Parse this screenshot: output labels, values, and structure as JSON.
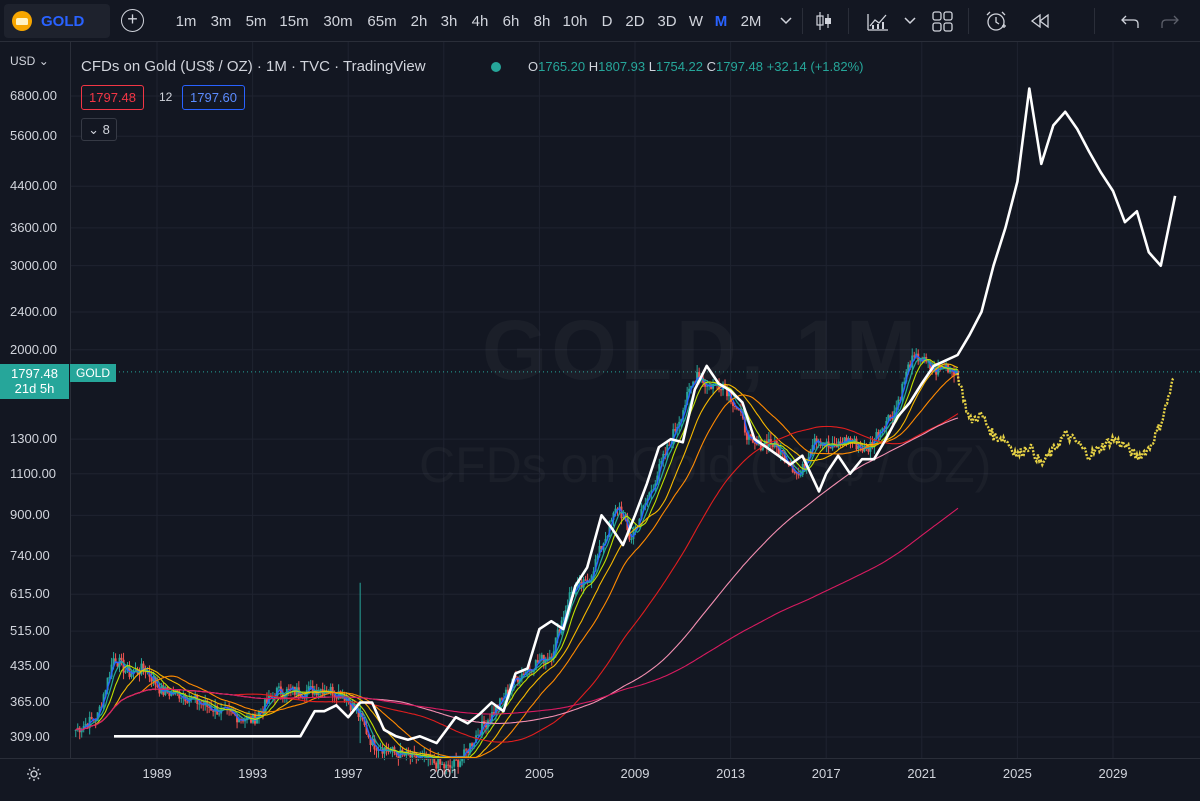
{
  "toolbar": {
    "symbol": "GOLD",
    "timeframes": [
      "1m",
      "3m",
      "5m",
      "15m",
      "30m",
      "65m",
      "2h",
      "3h",
      "4h",
      "6h",
      "8h",
      "10h",
      "D",
      "2D",
      "3D",
      "W",
      "M",
      "2M"
    ],
    "active_timeframe": "M",
    "icons": [
      "plus-icon",
      "chevron-down-icon",
      "candles-icon",
      "indicators-icon",
      "chevron-down-icon",
      "layout-grid-icon",
      "alert-clock-icon",
      "replay-icon",
      "undo-icon",
      "redo-icon"
    ]
  },
  "legend": {
    "title": "CFDs on Gold (US$ / OZ) · 1M · TVC · TradingView",
    "o_label": "O",
    "o": "1765.20",
    "h_label": "H",
    "h": "1807.93",
    "l_label": "L",
    "l": "1754.22",
    "c_label": "C",
    "c": "1797.48",
    "change": "+32.14 (+1.82%)",
    "bid": "1797.48",
    "spread": "12",
    "ask": "1797.60",
    "indicators_toggle": "8"
  },
  "price_axis": {
    "currency": "USD",
    "last_price": "1797.48",
    "countdown": "21d 5h",
    "symbol_tag": "GOLD"
  },
  "watermark": {
    "line1": "GOLD, 1M",
    "line2": "CFDs on Gold (US$ / OZ)"
  },
  "chart_data": {
    "type": "line",
    "title": "CFDs on Gold (US$ / OZ) · 1M · TVC · TradingView",
    "y_scale": "log",
    "ylim": [
      290,
      7300
    ],
    "xlim": [
      1985.6,
      2031.6
    ],
    "y_ticks": [
      6800,
      5600,
      4400,
      3600,
      3000,
      2400,
      2000,
      1300,
      1100,
      900,
      740,
      615,
      515,
      435,
      365,
      309
    ],
    "y_tick_labels": [
      "6800.00",
      "5600.00",
      "4400.00",
      "3600.00",
      "3000.00",
      "2400.00",
      "2000.00",
      "1300.00",
      "1100.00",
      "900.00",
      "740.00",
      "615.00",
      "515.00",
      "435.00",
      "365.00",
      "309.00"
    ],
    "x_ticks": [
      1989,
      1993,
      1997,
      2001,
      2005,
      2009,
      2013,
      2017,
      2021,
      2025,
      2029
    ],
    "grid": true,
    "colors": {
      "background": "#131722",
      "candle_up": "#26a69a",
      "candle_down": "#ef5350",
      "fractal": "#ffffff",
      "projection": "#e7d245",
      "ma_fast": "#2962ff",
      "ma_2": "#22ab94",
      "ma_3": "#c0e000",
      "ma_4": "#f5b800",
      "ma_5": "#ff8a00",
      "ma_6": "#e01e1e",
      "ma_7": "#f48fb1",
      "ma_8": "#d81b60"
    },
    "price": {
      "x": [
        1985.6,
        1986.5,
        1987.2,
        1987.8,
        1988.5,
        1989.2,
        1990.0,
        1991.0,
        1992.0,
        1993.0,
        1994.0,
        1995.0,
        1996.0,
        1996.8,
        1997.5,
        1998.0,
        1999.0,
        1999.7,
        2000.5,
        2001.2,
        2001.8,
        2002.5,
        2003.3,
        2004.0,
        2004.8,
        2005.5,
        2006.3,
        2007.0,
        2007.8,
        2008.3,
        2008.8,
        2009.5,
        2010.3,
        2011.0,
        2011.6,
        2012.0,
        2012.7,
        2013.3,
        2013.9,
        2014.6,
        2015.4,
        2015.9,
        2016.5,
        2017.2,
        2017.9,
        2018.7,
        2019.4,
        2019.9,
        2020.5,
        2020.9,
        2021.5,
        2022.0,
        2022.5
      ],
      "y": [
        320,
        340,
        455,
        420,
        430,
        385,
        380,
        360,
        345,
        335,
        385,
        385,
        390,
        380,
        340,
        300,
        285,
        280,
        275,
        265,
        280,
        320,
        360,
        410,
        440,
        460,
        620,
        650,
        820,
        950,
        800,
        970,
        1220,
        1500,
        1800,
        1680,
        1700,
        1500,
        1250,
        1290,
        1180,
        1080,
        1320,
        1240,
        1300,
        1230,
        1400,
        1500,
        1880,
        1930,
        1800,
        1850,
        1797
      ]
    },
    "fractal": {
      "x": [
        1987.2,
        1995.0,
        1995.6,
        1996.0,
        1996.5,
        1997.0,
        1997.5,
        1998.0,
        1998.5,
        1999.0,
        1999.5,
        2000.0,
        2000.7,
        2001.5,
        2002.0,
        2002.5,
        2003.0,
        2003.5,
        2004.0,
        2004.5,
        2005.0,
        2005.5,
        2006.0,
        2006.5,
        2007.0,
        2007.6,
        2008.0,
        2008.5,
        2009.0,
        2009.5,
        2010.0,
        2010.5,
        2011.0,
        2011.5,
        2012.0,
        2012.5,
        2013.0,
        2013.5,
        2014.0,
        2014.5,
        2015.0,
        2015.5,
        2016.0,
        2016.7,
        2017.0,
        2017.5,
        2018.0,
        2018.5,
        2019.0,
        2019.5,
        2020.0,
        2020.5,
        2021.0,
        2021.5,
        2022.0,
        2022.5,
        2023.0,
        2023.5,
        2024.0,
        2024.5,
        2025.0,
        2025.5,
        2026.0,
        2026.5,
        2027.0,
        2027.5,
        2028.0,
        2028.5,
        2029.0,
        2029.5,
        2030.0,
        2030.5,
        2031.0,
        2031.6
      ],
      "y": [
        310,
        310,
        350,
        350,
        360,
        340,
        365,
        365,
        320,
        310,
        305,
        310,
        300,
        340,
        330,
        345,
        365,
        350,
        420,
        430,
        520,
        540,
        520,
        640,
        700,
        900,
        850,
        780,
        900,
        1050,
        1250,
        1300,
        1280,
        1650,
        1850,
        1700,
        1640,
        1550,
        1300,
        1250,
        1200,
        1150,
        1200,
        1010,
        1100,
        1200,
        1100,
        1180,
        1180,
        1300,
        1450,
        1550,
        1700,
        1850,
        1900,
        1950,
        2150,
        2400,
        3000,
        3600,
        4500,
        7050,
        4900,
        5900,
        6300,
        5800,
        5200,
        4700,
        4300,
        3700,
        3900,
        3200,
        3000,
        4200
      ]
    },
    "projection": {
      "x": [
        2022.5,
        2023.0,
        2023.5,
        2024.0,
        2024.5,
        2025.0,
        2025.5,
        2026.0,
        2026.5,
        2027.0,
        2027.5,
        2028.0,
        2028.5,
        2029.0,
        2029.5,
        2030.0,
        2030.5,
        2031.0,
        2031.6
      ],
      "y": [
        1780,
        1420,
        1460,
        1320,
        1300,
        1200,
        1260,
        1150,
        1230,
        1330,
        1280,
        1200,
        1250,
        1300,
        1260,
        1190,
        1240,
        1400,
        1780
      ]
    }
  }
}
